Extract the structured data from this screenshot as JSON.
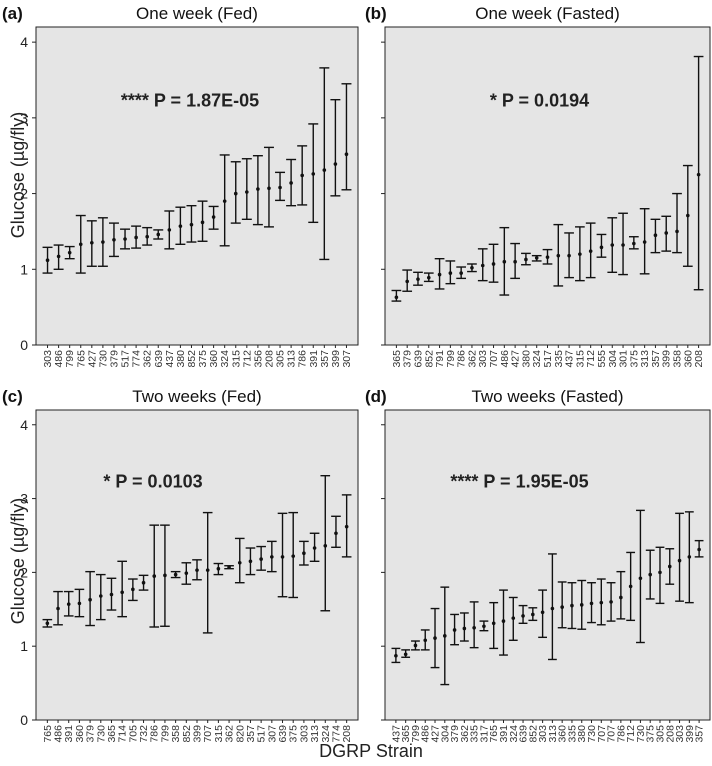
{
  "figure": {
    "ylabel": "Glucose (µg/fly)",
    "xlabel": "DGRP Strain"
  },
  "chart_data": [
    {
      "panel_label": "(a)",
      "title": "One week (Fed)",
      "type": "errorbar",
      "ylim": [
        0,
        4.2
      ],
      "yticks": [
        "0",
        "1",
        "2",
        "3",
        "4"
      ],
      "annotation": "**** P = 1.87E-05",
      "categories": [
        "303",
        "486",
        "799",
        "765",
        "427",
        "730",
        "379",
        "517",
        "774",
        "362",
        "639",
        "437",
        "380",
        "852",
        "375",
        "360",
        "324",
        "315",
        "712",
        "356",
        "208",
        "305",
        "313",
        "786",
        "391",
        "357",
        "399",
        "307"
      ],
      "means": [
        1.12,
        1.17,
        1.22,
        1.33,
        1.35,
        1.36,
        1.39,
        1.4,
        1.42,
        1.43,
        1.46,
        1.52,
        1.57,
        1.59,
        1.62,
        1.69,
        1.9,
        2.0,
        2.02,
        2.06,
        2.07,
        2.08,
        2.14,
        2.24,
        2.26,
        2.31,
        2.39,
        2.52
      ],
      "lower": [
        0.95,
        1.0,
        1.14,
        0.95,
        1.04,
        1.04,
        1.17,
        1.27,
        1.28,
        1.32,
        1.4,
        1.27,
        1.33,
        1.36,
        1.37,
        1.53,
        1.31,
        1.61,
        1.66,
        1.59,
        1.56,
        1.91,
        1.84,
        1.85,
        1.62,
        1.13,
        1.97,
        2.05
      ],
      "upper": [
        1.29,
        1.32,
        1.3,
        1.71,
        1.64,
        1.68,
        1.61,
        1.53,
        1.57,
        1.55,
        1.52,
        1.77,
        1.82,
        1.84,
        1.9,
        1.83,
        2.51,
        2.42,
        2.46,
        2.5,
        2.61,
        2.28,
        2.45,
        2.63,
        2.92,
        3.66,
        3.24,
        3.45
      ]
    },
    {
      "panel_label": "(b)",
      "title": "One week (Fasted)",
      "type": "errorbar",
      "ylim": [
        0,
        4.2
      ],
      "yticks": [],
      "annotation": "* P = 0.0194",
      "categories": [
        "365",
        "379",
        "639",
        "852",
        "791",
        "799",
        "786",
        "362",
        "303",
        "707",
        "486",
        "427",
        "380",
        "324",
        "517",
        "335",
        "437",
        "315",
        "712",
        "555",
        "304",
        "301",
        "375",
        "313",
        "357",
        "399",
        "358",
        "360",
        "208"
      ],
      "means": [
        0.63,
        0.84,
        0.87,
        0.89,
        0.93,
        0.95,
        0.95,
        1.02,
        1.05,
        1.07,
        1.1,
        1.1,
        1.13,
        1.15,
        1.16,
        1.18,
        1.18,
        1.2,
        1.24,
        1.29,
        1.32,
        1.32,
        1.34,
        1.36,
        1.45,
        1.48,
        1.5,
        1.71,
        2.25
      ],
      "lower": [
        0.58,
        0.71,
        0.79,
        0.84,
        0.74,
        0.81,
        0.88,
        0.97,
        0.85,
        0.83,
        0.66,
        0.88,
        1.06,
        1.11,
        1.07,
        0.78,
        0.89,
        0.85,
        0.89,
        1.16,
        0.96,
        0.93,
        1.27,
        0.94,
        1.22,
        1.24,
        1.22,
        1.04,
        0.73
      ],
      "upper": [
        0.72,
        0.99,
        0.96,
        0.95,
        1.14,
        1.11,
        1.03,
        1.07,
        1.27,
        1.33,
        1.55,
        1.34,
        1.21,
        1.18,
        1.26,
        1.59,
        1.48,
        1.56,
        1.61,
        1.46,
        1.68,
        1.74,
        1.43,
        1.8,
        1.66,
        1.7,
        2.0,
        2.37,
        3.81
      ]
    },
    {
      "panel_label": "(c)",
      "title": "Two weeks (Fed)",
      "type": "errorbar",
      "ylim": [
        0,
        4.2
      ],
      "yticks": [
        "0",
        "1",
        "2",
        "3",
        "4"
      ],
      "annotation": "* P = 0.0103",
      "categories": [
        "765",
        "486",
        "391",
        "360",
        "379",
        "730",
        "365",
        "714",
        "705",
        "732",
        "786",
        "799",
        "358",
        "852",
        "399",
        "707",
        "315",
        "362",
        "820",
        "357",
        "517",
        "307",
        "639",
        "375",
        "303",
        "313",
        "324",
        "774",
        "208"
      ],
      "means": [
        1.31,
        1.51,
        1.57,
        1.58,
        1.63,
        1.68,
        1.7,
        1.73,
        1.77,
        1.86,
        1.95,
        1.96,
        1.97,
        1.99,
        2.03,
        2.03,
        2.05,
        2.07,
        2.13,
        2.15,
        2.18,
        2.21,
        2.21,
        2.22,
        2.26,
        2.33,
        2.36,
        2.53,
        2.62
      ],
      "lower": [
        1.26,
        1.29,
        1.41,
        1.4,
        1.28,
        1.36,
        1.49,
        1.4,
        1.62,
        1.76,
        1.26,
        1.27,
        1.93,
        1.84,
        1.9,
        1.18,
        1.97,
        2.05,
        1.86,
        1.97,
        2.03,
        2.01,
        1.67,
        1.66,
        2.1,
        2.15,
        1.48,
        2.34,
        2.21
      ],
      "upper": [
        1.36,
        1.74,
        1.74,
        1.77,
        2.01,
        1.97,
        1.92,
        2.15,
        1.91,
        1.96,
        2.64,
        2.64,
        2.01,
        2.13,
        2.17,
        2.81,
        2.12,
        2.09,
        2.46,
        2.33,
        2.35,
        2.42,
        2.8,
        2.81,
        2.42,
        2.53,
        3.31,
        2.76,
        3.05
      ]
    },
    {
      "panel_label": "(d)",
      "title": "Two weeks (Fasted)",
      "type": "errorbar",
      "ylim": [
        0,
        4.2
      ],
      "yticks": [],
      "annotation": "**** P = 1.95E-05",
      "categories": [
        "437",
        "365",
        "799",
        "486",
        "427",
        "304",
        "379",
        "362",
        "335",
        "317",
        "765",
        "391",
        "324",
        "639",
        "852",
        "303",
        "313",
        "360",
        "335",
        "380",
        "730",
        "707",
        "707",
        "786",
        "712",
        "730",
        "375",
        "305",
        "208",
        "303",
        "399",
        "357"
      ],
      "means": [
        0.87,
        0.89,
        1.01,
        1.08,
        1.11,
        1.14,
        1.22,
        1.24,
        1.25,
        1.27,
        1.31,
        1.34,
        1.38,
        1.41,
        1.43,
        1.46,
        1.51,
        1.53,
        1.55,
        1.56,
        1.58,
        1.59,
        1.6,
        1.66,
        1.81,
        1.92,
        1.97,
        2.0,
        2.08,
        2.16,
        2.21,
        2.31
      ],
      "lower": [
        0.78,
        0.85,
        0.95,
        0.95,
        0.71,
        0.48,
        1.02,
        1.07,
        0.98,
        1.21,
        0.97,
        0.88,
        1.08,
        1.31,
        1.35,
        1.12,
        0.82,
        1.25,
        1.24,
        1.23,
        1.32,
        1.29,
        1.34,
        1.37,
        1.35,
        1.05,
        1.64,
        1.58,
        1.84,
        1.61,
        1.59,
        2.21
      ],
      "upper": [
        0.97,
        0.95,
        1.07,
        1.22,
        1.51,
        1.8,
        1.43,
        1.45,
        1.6,
        1.34,
        1.59,
        1.76,
        1.66,
        1.55,
        1.52,
        1.76,
        2.25,
        1.87,
        1.86,
        1.89,
        1.86,
        1.91,
        1.86,
        2.01,
        2.27,
        2.84,
        2.3,
        2.34,
        2.32,
        2.8,
        2.82,
        2.43
      ]
    }
  ]
}
